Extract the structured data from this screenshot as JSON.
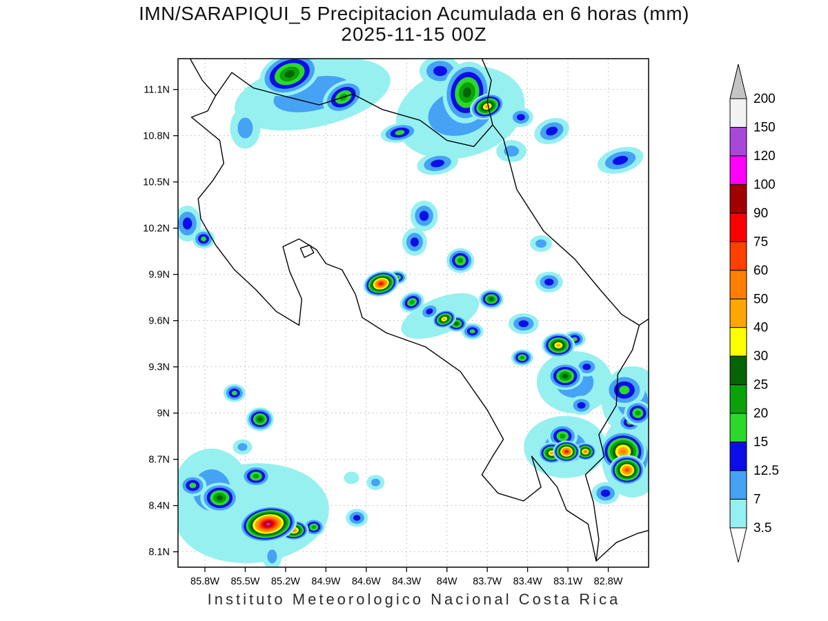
{
  "chart_data": {
    "type": "heatmap",
    "title": "IMN/SARAPIQUI_5 Precipitacion Acumulada en 6 horas (mm)",
    "subtitle": "2025-11-15 00Z",
    "footer": "Instituto Meteorologico Nacional Costa Rica",
    "units": "mm",
    "projection": "latlon",
    "grid": "dashed",
    "xlim": [
      -86.0,
      -82.5
    ],
    "ylim": [
      8.0,
      11.3
    ],
    "x_ticks": {
      "values": [
        -85.8,
        -85.5,
        -85.2,
        -84.9,
        -84.6,
        -84.3,
        -84.0,
        -83.7,
        -83.4,
        -83.1,
        -82.8
      ],
      "labels": [
        "85.8W",
        "85.5W",
        "85.2W",
        "84.9W",
        "84.6W",
        "84.3W",
        "84W",
        "83.7W",
        "83.4W",
        "83.1W",
        "82.8W"
      ]
    },
    "y_ticks": {
      "values": [
        11.1,
        10.8,
        10.5,
        10.2,
        9.9,
        9.6,
        9.3,
        9.0,
        8.7,
        8.4,
        8.1
      ],
      "labels": [
        "11.1N",
        "10.8N",
        "10.5N",
        "10.2N",
        "9.9N",
        "9.6N",
        "9.3N",
        "9N",
        "8.7N",
        "8.4N",
        "8.1N"
      ]
    },
    "colorbar": {
      "labels_top_to_bottom": [
        "200",
        "150",
        "120",
        "100",
        "90",
        "75",
        "60",
        "50",
        "40",
        "30",
        "25",
        "20",
        "15",
        "12.5",
        "7",
        "3.5"
      ],
      "levels_ascending": [
        3.5,
        7,
        12.5,
        15,
        20,
        25,
        30,
        40,
        50,
        60,
        75,
        90,
        100,
        120,
        150,
        200
      ],
      "colors_ascending": [
        "#96f0f0",
        "#45a2f5",
        "#0d0de8",
        "#2bd92b",
        "#09a309",
        "#066306",
        "#ffff00",
        "#ffa600",
        "#ff8000",
        "#ff4000",
        "#fa0000",
        "#a00000",
        "#ff00ff",
        "#a848d8",
        "#f2f2f2"
      ],
      "over_color": "#c4c4c4",
      "under_color": "#ffffff"
    },
    "cell_format": [
      "lon_degE",
      "lat_degN",
      "peak_mm",
      "rx_px",
      "ry_px",
      "rot_deg"
    ],
    "cells": [
      [
        -85.0,
        11.07,
        7,
        115,
        48,
        -12
      ],
      [
        -85.5,
        10.85,
        7,
        22,
        30,
        0
      ],
      [
        -83.9,
        10.95,
        7,
        95,
        65,
        -15
      ],
      [
        -83.52,
        10.7,
        7,
        22,
        16,
        0
      ],
      [
        -84.05,
        9.63,
        3.5,
        60,
        26,
        -22
      ],
      [
        -83.05,
        9.2,
        7,
        55,
        45,
        0
      ],
      [
        -82.62,
        9.08,
        7,
        45,
        50,
        0
      ],
      [
        -83.12,
        8.78,
        7,
        60,
        45,
        0
      ],
      [
        -82.62,
        8.72,
        7,
        45,
        60,
        0
      ],
      [
        -85.45,
        8.35,
        3.5,
        112,
        72,
        -5
      ],
      [
        -85.75,
        8.5,
        7,
        55,
        60,
        0
      ],
      [
        -85.3,
        8.07,
        7,
        14,
        20,
        0
      ],
      [
        -85.17,
        11.2,
        25,
        45,
        30,
        -20
      ],
      [
        -84.77,
        11.05,
        20,
        32,
        22,
        -30
      ],
      [
        -84.05,
        11.22,
        12.5,
        30,
        22,
        0
      ],
      [
        -83.85,
        11.08,
        25,
        35,
        45,
        10
      ],
      [
        -83.7,
        10.99,
        40,
        26,
        18,
        -20
      ],
      [
        -84.35,
        10.82,
        15,
        28,
        14,
        -10
      ],
      [
        -83.45,
        10.92,
        12.5,
        18,
        14,
        0
      ],
      [
        -83.22,
        10.83,
        12.5,
        26,
        18,
        -20
      ],
      [
        -82.71,
        10.64,
        12.5,
        34,
        18,
        -15
      ],
      [
        -84.07,
        10.62,
        12.5,
        30,
        16,
        -10
      ],
      [
        -84.17,
        10.28,
        12.5,
        20,
        22,
        0
      ],
      [
        -85.93,
        10.23,
        12.5,
        20,
        26,
        0
      ],
      [
        -85.81,
        10.13,
        15,
        16,
        14,
        0
      ],
      [
        -83.24,
        9.85,
        12.5,
        20,
        15,
        0
      ],
      [
        -83.3,
        10.1,
        7,
        16,
        12,
        0
      ],
      [
        -84.49,
        9.84,
        75,
        26,
        18,
        -15
      ],
      [
        -84.37,
        9.88,
        20,
        14,
        10,
        0
      ],
      [
        -84.24,
        10.11,
        12.5,
        18,
        20,
        0
      ],
      [
        -83.9,
        9.99,
        20,
        20,
        18,
        0
      ],
      [
        -84.26,
        9.72,
        20,
        18,
        14,
        -25
      ],
      [
        -84.13,
        9.66,
        12.5,
        16,
        12,
        -25
      ],
      [
        -84.02,
        9.61,
        40,
        18,
        13,
        -20
      ],
      [
        -83.93,
        9.58,
        25,
        16,
        12,
        0
      ],
      [
        -83.81,
        9.53,
        15,
        16,
        12,
        0
      ],
      [
        -83.67,
        9.74,
        25,
        18,
        14,
        0
      ],
      [
        -83.43,
        9.58,
        12.5,
        22,
        15,
        0
      ],
      [
        -83.17,
        9.44,
        40,
        24,
        18,
        0
      ],
      [
        -83.44,
        9.36,
        20,
        16,
        12,
        0
      ],
      [
        -83.05,
        9.48,
        15,
        16,
        12,
        0
      ],
      [
        -83.12,
        9.24,
        25,
        26,
        20,
        0
      ],
      [
        -82.96,
        9.3,
        12.5,
        18,
        14,
        0
      ],
      [
        -83.0,
        9.05,
        12.5,
        18,
        14,
        0
      ],
      [
        -82.68,
        9.15,
        15,
        30,
        25,
        0
      ],
      [
        -82.58,
        9.0,
        20,
        20,
        18,
        0
      ],
      [
        -83.14,
        8.85,
        20,
        22,
        18,
        0
      ],
      [
        -83.22,
        8.74,
        40,
        20,
        16,
        0
      ],
      [
        -83.11,
        8.75,
        75,
        20,
        16,
        0
      ],
      [
        -82.97,
        8.75,
        50,
        16,
        13,
        0
      ],
      [
        -82.69,
        8.75,
        50,
        34,
        30,
        0
      ],
      [
        -82.66,
        8.63,
        60,
        26,
        22,
        0
      ],
      [
        -82.64,
        8.94,
        15,
        18,
        14,
        0
      ],
      [
        -82.82,
        8.48,
        12.5,
        20,
        16,
        0
      ],
      [
        -85.58,
        9.13,
        15,
        16,
        13,
        0
      ],
      [
        -85.39,
        8.96,
        25,
        20,
        17,
        0
      ],
      [
        -85.52,
        8.78,
        7,
        14,
        11,
        0
      ],
      [
        -85.89,
        8.53,
        15,
        20,
        16,
        0
      ],
      [
        -85.69,
        8.45,
        25,
        28,
        22,
        0
      ],
      [
        -85.42,
        8.59,
        20,
        22,
        16,
        0
      ],
      [
        -85.33,
        8.28,
        100,
        42,
        26,
        -8
      ],
      [
        -85.14,
        8.24,
        50,
        22,
        15,
        0
      ],
      [
        -84.99,
        8.26,
        20,
        16,
        13,
        0
      ],
      [
        -84.67,
        8.32,
        12.5,
        16,
        13,
        0
      ],
      [
        -84.53,
        8.55,
        7,
        13,
        11,
        0
      ],
      [
        -84.71,
        8.58,
        3.5,
        11,
        9,
        0
      ]
    ],
    "coastlines": {
      "costa-rica-mainland": [
        [
          -85.72,
          11.06
        ],
        [
          -85.6,
          11.21
        ],
        [
          -85.44,
          11.11
        ],
        [
          -85.18,
          11.05
        ],
        [
          -84.95,
          11.0
        ],
        [
          -84.7,
          11.07
        ],
        [
          -84.48,
          10.97
        ],
        [
          -84.2,
          10.9
        ],
        [
          -84.0,
          10.77
        ],
        [
          -83.8,
          10.73
        ],
        [
          -83.66,
          10.87
        ],
        [
          -83.58,
          10.78
        ],
        [
          -83.48,
          10.45
        ],
        [
          -83.28,
          10.18
        ],
        [
          -83.05,
          10.0
        ],
        [
          -82.86,
          9.8
        ],
        [
          -82.7,
          9.64
        ],
        [
          -82.57,
          9.57
        ],
        [
          -82.62,
          9.41
        ],
        [
          -82.73,
          9.25
        ],
        [
          -82.74,
          9.05
        ],
        [
          -82.87,
          8.86
        ],
        [
          -82.83,
          8.72
        ],
        [
          -82.97,
          8.6
        ],
        [
          -82.91,
          8.42
        ],
        [
          -82.87,
          8.18
        ],
        [
          -82.89,
          8.04
        ],
        [
          -82.95,
          8.28
        ],
        [
          -83.11,
          8.37
        ],
        [
          -83.18,
          8.52
        ],
        [
          -83.37,
          8.72
        ],
        [
          -83.3,
          8.52
        ],
        [
          -83.43,
          8.43
        ],
        [
          -83.62,
          8.48
        ],
        [
          -83.74,
          8.6
        ],
        [
          -83.66,
          8.72
        ],
        [
          -83.58,
          8.83
        ],
        [
          -83.7,
          9.02
        ],
        [
          -83.9,
          9.27
        ],
        [
          -84.16,
          9.43
        ],
        [
          -84.45,
          9.52
        ],
        [
          -84.63,
          9.62
        ],
        [
          -84.68,
          9.77
        ],
        [
          -84.78,
          9.93
        ],
        [
          -84.9,
          9.97
        ],
        [
          -84.97,
          10.06
        ],
        [
          -85.1,
          10.13
        ],
        [
          -85.22,
          10.08
        ],
        [
          -85.17,
          9.92
        ],
        [
          -85.08,
          9.74
        ],
        [
          -85.1,
          9.57
        ],
        [
          -85.27,
          9.66
        ],
        [
          -85.42,
          9.8
        ],
        [
          -85.58,
          9.93
        ],
        [
          -85.72,
          10.09
        ],
        [
          -85.83,
          10.26
        ],
        [
          -85.85,
          10.39
        ],
        [
          -85.74,
          10.51
        ],
        [
          -85.66,
          10.62
        ],
        [
          -85.69,
          10.77
        ],
        [
          -85.83,
          10.87
        ],
        [
          -85.9,
          10.92
        ],
        [
          -85.78,
          10.96
        ],
        [
          -85.72,
          11.06
        ]
      ],
      "nicaragua-pacific-coast": [
        [
          -85.72,
          11.06
        ],
        [
          -85.82,
          11.16
        ],
        [
          -85.91,
          11.3
        ]
      ],
      "nicaragua-caribbean-coast": [
        [
          -83.66,
          10.87
        ],
        [
          -83.7,
          11.02
        ],
        [
          -83.67,
          11.16
        ],
        [
          -83.74,
          11.3
        ]
      ],
      "panama-pacific-coast": [
        [
          -82.89,
          8.04
        ],
        [
          -82.74,
          8.16
        ],
        [
          -82.58,
          8.22
        ],
        [
          -82.45,
          8.25
        ]
      ],
      "panama-caribbean-coast": [
        [
          -82.57,
          9.57
        ],
        [
          -82.45,
          9.64
        ]
      ],
      "chira-island": [
        [
          -85.09,
          10.07
        ],
        [
          -85.02,
          10.09
        ],
        [
          -84.99,
          10.04
        ],
        [
          -85.06,
          10.01
        ],
        [
          -85.09,
          10.07
        ]
      ]
    }
  }
}
